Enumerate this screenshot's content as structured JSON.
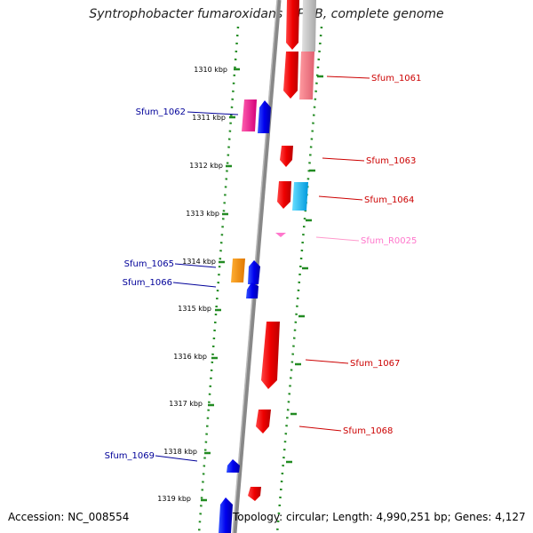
{
  "header": {
    "title": "Syntrophobacter fumaroxidans MPOB, complete genome"
  },
  "footer": {
    "accession": "Accession: NC_008554",
    "topology": "Topology: circular; Length: 4,990,251 bp; Genes: 4,127"
  },
  "ticks": [
    "1310 kbp",
    "1311 kbp",
    "1312 kbp",
    "1313 kbp",
    "1314 kbp",
    "1315 kbp",
    "1316 kbp",
    "1317 kbp",
    "1318 kbp",
    "1319 kbp"
  ],
  "labels": {
    "right": [
      "Sfum_1061",
      "Sfum_1063",
      "Sfum_1064",
      "Sfum_R0025",
      "Sfum_1067",
      "Sfum_1068"
    ],
    "left": [
      "Sfum_1062",
      "Sfum_1065",
      "Sfum_1066",
      "Sfum_1069"
    ]
  },
  "colors": {
    "forward": "#ff0000",
    "reverse": "#0000ff",
    "magenta": "#ff1493",
    "orange": "#ff8c00",
    "cyan": "#00bfff",
    "rna": "#ff77cc",
    "label_right": "#cc0000",
    "label_left": "#000099",
    "tick_dots": "#228b22"
  }
}
